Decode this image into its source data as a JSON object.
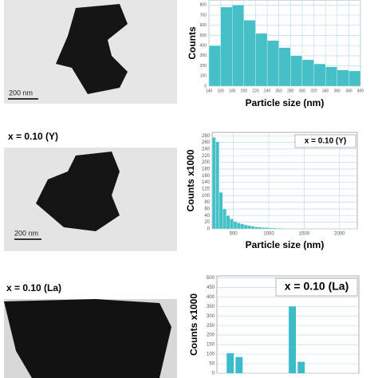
{
  "micrographs": [
    {
      "scale_bar": "200 nm"
    },
    {
      "label": "x = 0.10 (Y)",
      "scale_bar": "200 nm"
    },
    {
      "label": "x = 0.10 (La)"
    }
  ],
  "chart_data": [
    {
      "type": "histogram",
      "y_label": "Counts",
      "x_label": "Particle size (nm)",
      "color": "#45c0c6",
      "bins": [
        140,
        160,
        180,
        200,
        220,
        240,
        260,
        280,
        300,
        320,
        340,
        360,
        380,
        400
      ],
      "values": [
        400,
        780,
        800,
        650,
        520,
        450,
        380,
        300,
        260,
        220,
        190,
        160,
        150
      ],
      "xlim": [
        140,
        400
      ],
      "xticks": [
        140,
        160,
        180,
        200,
        220,
        240,
        260,
        280,
        300,
        320,
        340,
        360,
        380,
        400
      ],
      "ylim": [
        0,
        850
      ],
      "yticks": [
        0,
        100,
        200,
        300,
        400,
        500,
        600,
        700,
        800
      ],
      "grid": true
    },
    {
      "type": "histogram",
      "annotation": "x = 0.10 (Y)",
      "y_label": "Counts x1000",
      "x_label": "Particle size (nm)",
      "color": "#45c0c6",
      "bins": [
        200,
        250,
        300,
        350,
        400,
        450,
        500,
        550,
        600,
        650,
        700,
        750,
        800,
        850,
        900,
        950,
        1000,
        1050,
        1100,
        1150,
        1200
      ],
      "values": [
        275,
        262,
        110,
        60,
        40,
        30,
        22,
        18,
        15,
        12,
        10,
        8,
        6,
        5,
        4,
        4,
        3,
        3,
        2,
        2
      ],
      "xlim": [
        200,
        2250
      ],
      "xticks": [
        500,
        1000,
        1500,
        2000
      ],
      "ylim": [
        0,
        290
      ],
      "yticks": [
        0,
        20,
        40,
        60,
        80,
        100,
        120,
        140,
        160,
        180,
        200,
        220,
        240,
        260,
        280
      ],
      "grid": true
    },
    {
      "type": "bar",
      "annotation": "x = 0.10 (La)",
      "y_label": "Counts x1000",
      "color": "#3cbcc8",
      "categories": [
        null,
        null,
        null,
        null,
        null,
        null,
        null,
        null,
        null,
        null,
        null,
        null,
        null,
        null,
        null,
        null
      ],
      "values": [
        0,
        105,
        85,
        0,
        0,
        0,
        0,
        0,
        350,
        60,
        0,
        0,
        0,
        0,
        0,
        0
      ],
      "ylim": [
        0,
        510
      ],
      "yticks": [
        0,
        50,
        100,
        150,
        200,
        250,
        300,
        350,
        400,
        450,
        500
      ],
      "grid": true
    }
  ]
}
